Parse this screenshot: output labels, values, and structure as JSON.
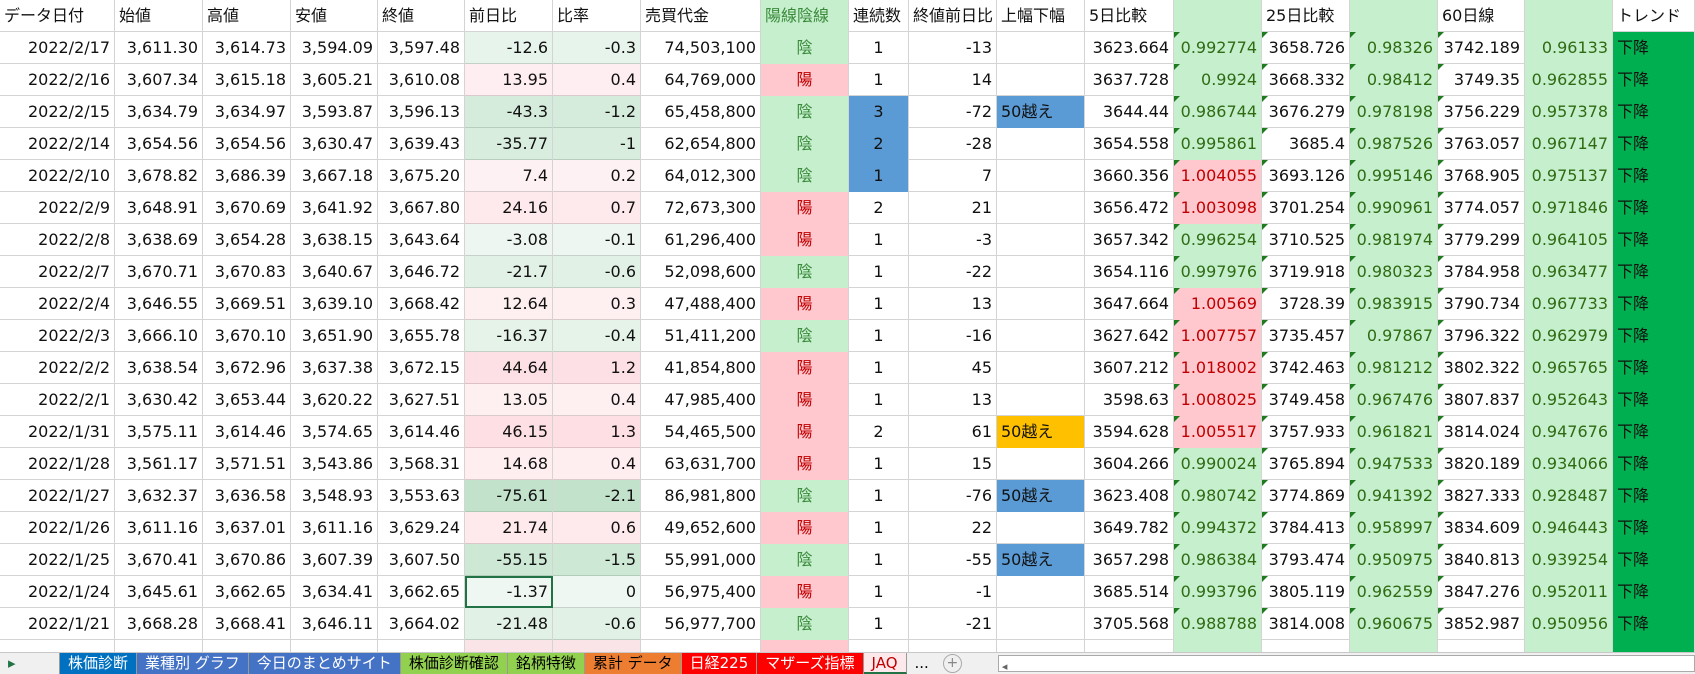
{
  "headers": [
    "データ日付",
    "始値",
    "高値",
    "安値",
    "終値",
    "前日比",
    "比率",
    "売買代金",
    "陽線陰線",
    "連続数",
    "終値前日比",
    "上幅下幅",
    "5日比較",
    "",
    "25日比較",
    "",
    "60日線",
    "",
    "トレンド"
  ],
  "rows": [
    [
      "2022/2/17",
      "3,611.30",
      "3,614.73",
      "3,594.09",
      "3,597.48",
      "-12.6",
      "-0.3",
      "74,503,100",
      "陰",
      "1",
      "-13",
      "",
      "3623.664",
      "0.992774",
      "3658.726",
      "0.98326",
      "3742.189",
      "0.96133",
      "下降"
    ],
    [
      "2022/2/16",
      "3,607.34",
      "3,615.18",
      "3,605.21",
      "3,610.08",
      "13.95",
      "0.4",
      "64,769,000",
      "陽",
      "1",
      "14",
      "",
      "3637.728",
      "0.9924",
      "3668.332",
      "0.98412",
      "3749.35",
      "0.962855",
      "下降"
    ],
    [
      "2022/2/15",
      "3,634.79",
      "3,634.97",
      "3,593.87",
      "3,596.13",
      "-43.3",
      "-1.2",
      "65,458,800",
      "陰",
      "3",
      "-72",
      "50越え",
      "3644.44",
      "0.986744",
      "3676.279",
      "0.978198",
      "3756.229",
      "0.957378",
      "下降"
    ],
    [
      "2022/2/14",
      "3,654.56",
      "3,654.56",
      "3,630.47",
      "3,639.43",
      "-35.77",
      "-1",
      "62,654,800",
      "陰",
      "2",
      "-28",
      "",
      "3654.558",
      "0.995861",
      "3685.4",
      "0.987526",
      "3763.057",
      "0.967147",
      "下降"
    ],
    [
      "2022/2/10",
      "3,678.82",
      "3,686.39",
      "3,667.18",
      "3,675.20",
      "7.4",
      "0.2",
      "64,012,300",
      "陰",
      "1",
      "7",
      "",
      "3660.356",
      "1.004055",
      "3693.126",
      "0.995146",
      "3768.905",
      "0.975137",
      "下降"
    ],
    [
      "2022/2/9",
      "3,648.91",
      "3,670.69",
      "3,641.92",
      "3,667.80",
      "24.16",
      "0.7",
      "72,673,300",
      "陽",
      "2",
      "21",
      "",
      "3656.472",
      "1.003098",
      "3701.254",
      "0.990961",
      "3774.057",
      "0.971846",
      "下降"
    ],
    [
      "2022/2/8",
      "3,638.69",
      "3,654.28",
      "3,638.15",
      "3,643.64",
      "-3.08",
      "-0.1",
      "61,296,400",
      "陽",
      "1",
      "-3",
      "",
      "3657.342",
      "0.996254",
      "3710.525",
      "0.981974",
      "3779.299",
      "0.964105",
      "下降"
    ],
    [
      "2022/2/7",
      "3,670.71",
      "3,670.83",
      "3,640.67",
      "3,646.72",
      "-21.7",
      "-0.6",
      "52,098,600",
      "陰",
      "1",
      "-22",
      "",
      "3654.116",
      "0.997976",
      "3719.918",
      "0.980323",
      "3784.958",
      "0.963477",
      "下降"
    ],
    [
      "2022/2/4",
      "3,646.55",
      "3,669.51",
      "3,639.10",
      "3,668.42",
      "12.64",
      "0.3",
      "47,488,400",
      "陽",
      "1",
      "13",
      "",
      "3647.664",
      "1.00569",
      "3728.39",
      "0.983915",
      "3790.734",
      "0.967733",
      "下降"
    ],
    [
      "2022/2/3",
      "3,666.10",
      "3,670.10",
      "3,651.90",
      "3,655.78",
      "-16.37",
      "-0.4",
      "51,411,200",
      "陰",
      "1",
      "-16",
      "",
      "3627.642",
      "1.007757",
      "3735.457",
      "0.97867",
      "3796.322",
      "0.962979",
      "下降"
    ],
    [
      "2022/2/2",
      "3,638.54",
      "3,672.96",
      "3,637.38",
      "3,672.15",
      "44.64",
      "1.2",
      "41,854,800",
      "陽",
      "1",
      "45",
      "",
      "3607.212",
      "1.018002",
      "3742.463",
      "0.981212",
      "3802.322",
      "0.965765",
      "下降"
    ],
    [
      "2022/2/1",
      "3,630.42",
      "3,653.44",
      "3,620.22",
      "3,627.51",
      "13.05",
      "0.4",
      "47,985,400",
      "陽",
      "1",
      "13",
      "",
      "3598.63",
      "1.008025",
      "3749.458",
      "0.967476",
      "3807.837",
      "0.952643",
      "下降"
    ],
    [
      "2022/1/31",
      "3,575.11",
      "3,614.46",
      "3,574.65",
      "3,614.46",
      "46.15",
      "1.3",
      "54,465,500",
      "陽",
      "2",
      "61",
      "50越え",
      "3594.628",
      "1.005517",
      "3757.933",
      "0.961821",
      "3814.024",
      "0.947676",
      "下降"
    ],
    [
      "2022/1/28",
      "3,561.17",
      "3,571.51",
      "3,543.86",
      "3,568.31",
      "14.68",
      "0.4",
      "63,631,700",
      "陽",
      "1",
      "15",
      "",
      "3604.266",
      "0.990024",
      "3765.894",
      "0.947533",
      "3820.189",
      "0.934066",
      "下降"
    ],
    [
      "2022/1/27",
      "3,632.37",
      "3,636.58",
      "3,548.93",
      "3,553.63",
      "-75.61",
      "-2.1",
      "86,981,800",
      "陰",
      "1",
      "-76",
      "50越え",
      "3623.408",
      "0.980742",
      "3774.869",
      "0.941392",
      "3827.333",
      "0.928487",
      "下降"
    ],
    [
      "2022/1/26",
      "3,611.16",
      "3,637.01",
      "3,611.16",
      "3,629.24",
      "21.74",
      "0.6",
      "49,652,600",
      "陽",
      "1",
      "22",
      "",
      "3649.782",
      "0.994372",
      "3784.413",
      "0.958997",
      "3834.609",
      "0.946443",
      "下降"
    ],
    [
      "2022/1/25",
      "3,670.41",
      "3,670.86",
      "3,607.39",
      "3,607.50",
      "-55.15",
      "-1.5",
      "55,991,000",
      "陰",
      "1",
      "-55",
      "50越え",
      "3657.298",
      "0.986384",
      "3793.474",
      "0.950975",
      "3840.813",
      "0.939254",
      "下降"
    ],
    [
      "2022/1/24",
      "3,645.61",
      "3,662.65",
      "3,634.41",
      "3,662.65",
      "-1.37",
      "0",
      "56,975,400",
      "陽",
      "1",
      "-1",
      "",
      "3685.514",
      "0.993796",
      "3805.119",
      "0.962559",
      "3847.276",
      "0.952011",
      "下降"
    ],
    [
      "2022/1/21",
      "3,668.28",
      "3,668.41",
      "3,646.11",
      "3,664.02",
      "-21.48",
      "-0.6",
      "56,977,700",
      "陰",
      "1",
      "-21",
      "",
      "3705.568",
      "0.988788",
      "3814.008",
      "0.960675",
      "3852.987",
      "0.950956",
      "下降"
    ]
  ],
  "streak_highlight": {
    "2022/2/15": "#5b9bd5",
    "2022/2/14": "#5b9bd5",
    "2022/2/10": "#5b9bd5"
  },
  "range_colors": {
    "2022/2/15": "#5b9bd5",
    "2022/1/31": "#ffc000",
    "2022/1/27": "#5b9bd5",
    "2022/1/25": "#5b9bd5"
  },
  "selected_cell": {
    "row": "2022/1/24",
    "column": "前日比"
  },
  "colors": {
    "yin_bg": "#c6efce",
    "yin_fg": "#3a8a3a",
    "yang_bg": "#ffc7ce",
    "yang_fg": "#c00000",
    "ratio_fg": "#2e6b12",
    "trend_bg": "#00b050"
  },
  "tabs": [
    {
      "label": "株価診断",
      "bg": "#0070c0",
      "fg": "#fff"
    },
    {
      "label": "業種別 グラフ",
      "bg": "#4472c4",
      "fg": "#fff"
    },
    {
      "label": "今日のまとめサイト",
      "bg": "#4472c4",
      "fg": "#fff"
    },
    {
      "label": "株価診断確認",
      "bg": "#92d050",
      "fg": "#000"
    },
    {
      "label": "銘柄特徴",
      "bg": "#92d050",
      "fg": "#000"
    },
    {
      "label": "累計 データ",
      "bg": "#ed7d31",
      "fg": "#000"
    },
    {
      "label": "日経225",
      "bg": "#ff0000",
      "fg": "#fff"
    },
    {
      "label": "マザーズ指標",
      "bg": "#ff0000",
      "fg": "#fff"
    },
    {
      "label": "JAQ",
      "bg": "#fde9ec",
      "fg": "#c00000",
      "active": true
    }
  ],
  "tab_more": "...",
  "tab_add": "+"
}
